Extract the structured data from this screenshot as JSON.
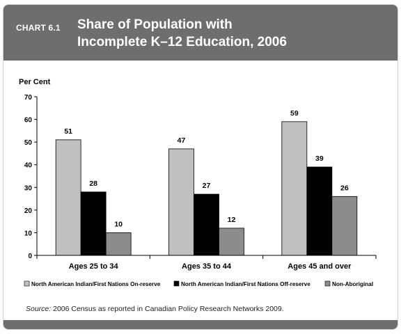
{
  "header": {
    "label": "CHART 6.1",
    "title_lines": [
      "Share of Population with",
      "Incomplete K–12 Education, 2006"
    ]
  },
  "colors": {
    "series": [
      "#c0c0c0",
      "#000000",
      "#8c8c8c"
    ],
    "header_bg": "#6e6e6e"
  },
  "chart_data": {
    "type": "bar",
    "ylabel": "Per Cent",
    "ylim": [
      0,
      70
    ],
    "yticks": [
      0,
      10,
      20,
      30,
      40,
      50,
      60,
      70
    ],
    "categories": [
      "Ages 25 to 34",
      "Ages 35 to 44",
      "Ages 45 and over"
    ],
    "series": [
      {
        "name": "North American Indian/First Nations On-reserve",
        "values": [
          51,
          47,
          59
        ]
      },
      {
        "name": "North American Indian/First Nations Off-reserve",
        "values": [
          28,
          27,
          39
        ]
      },
      {
        "name": "Non-Aboriginal",
        "values": [
          10,
          12,
          26
        ]
      }
    ],
    "legend_position": "bottom",
    "grid": false
  },
  "source": {
    "label": "Source:",
    "text": " 2006 Census as reported in Canadian Policy Research Networks 2009."
  }
}
